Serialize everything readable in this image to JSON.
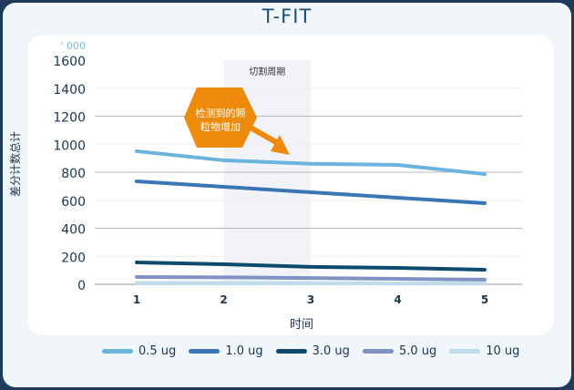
{
  "chart_data": {
    "type": "line",
    "title": "T-FIT",
    "unit_label": "' 000",
    "xlabel": "时间",
    "ylabel": "差分计数总计",
    "x": [
      1,
      2,
      3,
      4,
      5
    ],
    "ylim": [
      0,
      1600
    ],
    "yticks": [
      0,
      200,
      400,
      600,
      800,
      1000,
      1200,
      1400,
      1600
    ],
    "grid": true,
    "legend_position": "bottom",
    "shaded_region": {
      "x_range": [
        2,
        3
      ],
      "label": "切割周期",
      "color": "#f1f3f8"
    },
    "annotation": {
      "text_line1": "检测到的颗",
      "text_line2": "粒物增加",
      "color": "#ee8a0c"
    },
    "series": [
      {
        "name": "0.5 ug",
        "color": "#6ab4de",
        "values": [
          950,
          885,
          860,
          852,
          787
        ]
      },
      {
        "name": "1.0 ug",
        "color": "#3a76b4",
        "values": [
          735,
          696,
          657,
          618,
          579
        ]
      },
      {
        "name": "3.0 ug",
        "color": "#0e4a6e",
        "values": [
          156,
          143,
          124,
          117,
          104
        ]
      },
      {
        "name": "5.0 ug",
        "color": "#7f92c4",
        "values": [
          52,
          50,
          45,
          39,
          33
        ]
      },
      {
        "name": "10 ug",
        "color": "#bfdcec",
        "values": [
          10,
          10,
          8,
          6,
          5
        ]
      }
    ]
  }
}
